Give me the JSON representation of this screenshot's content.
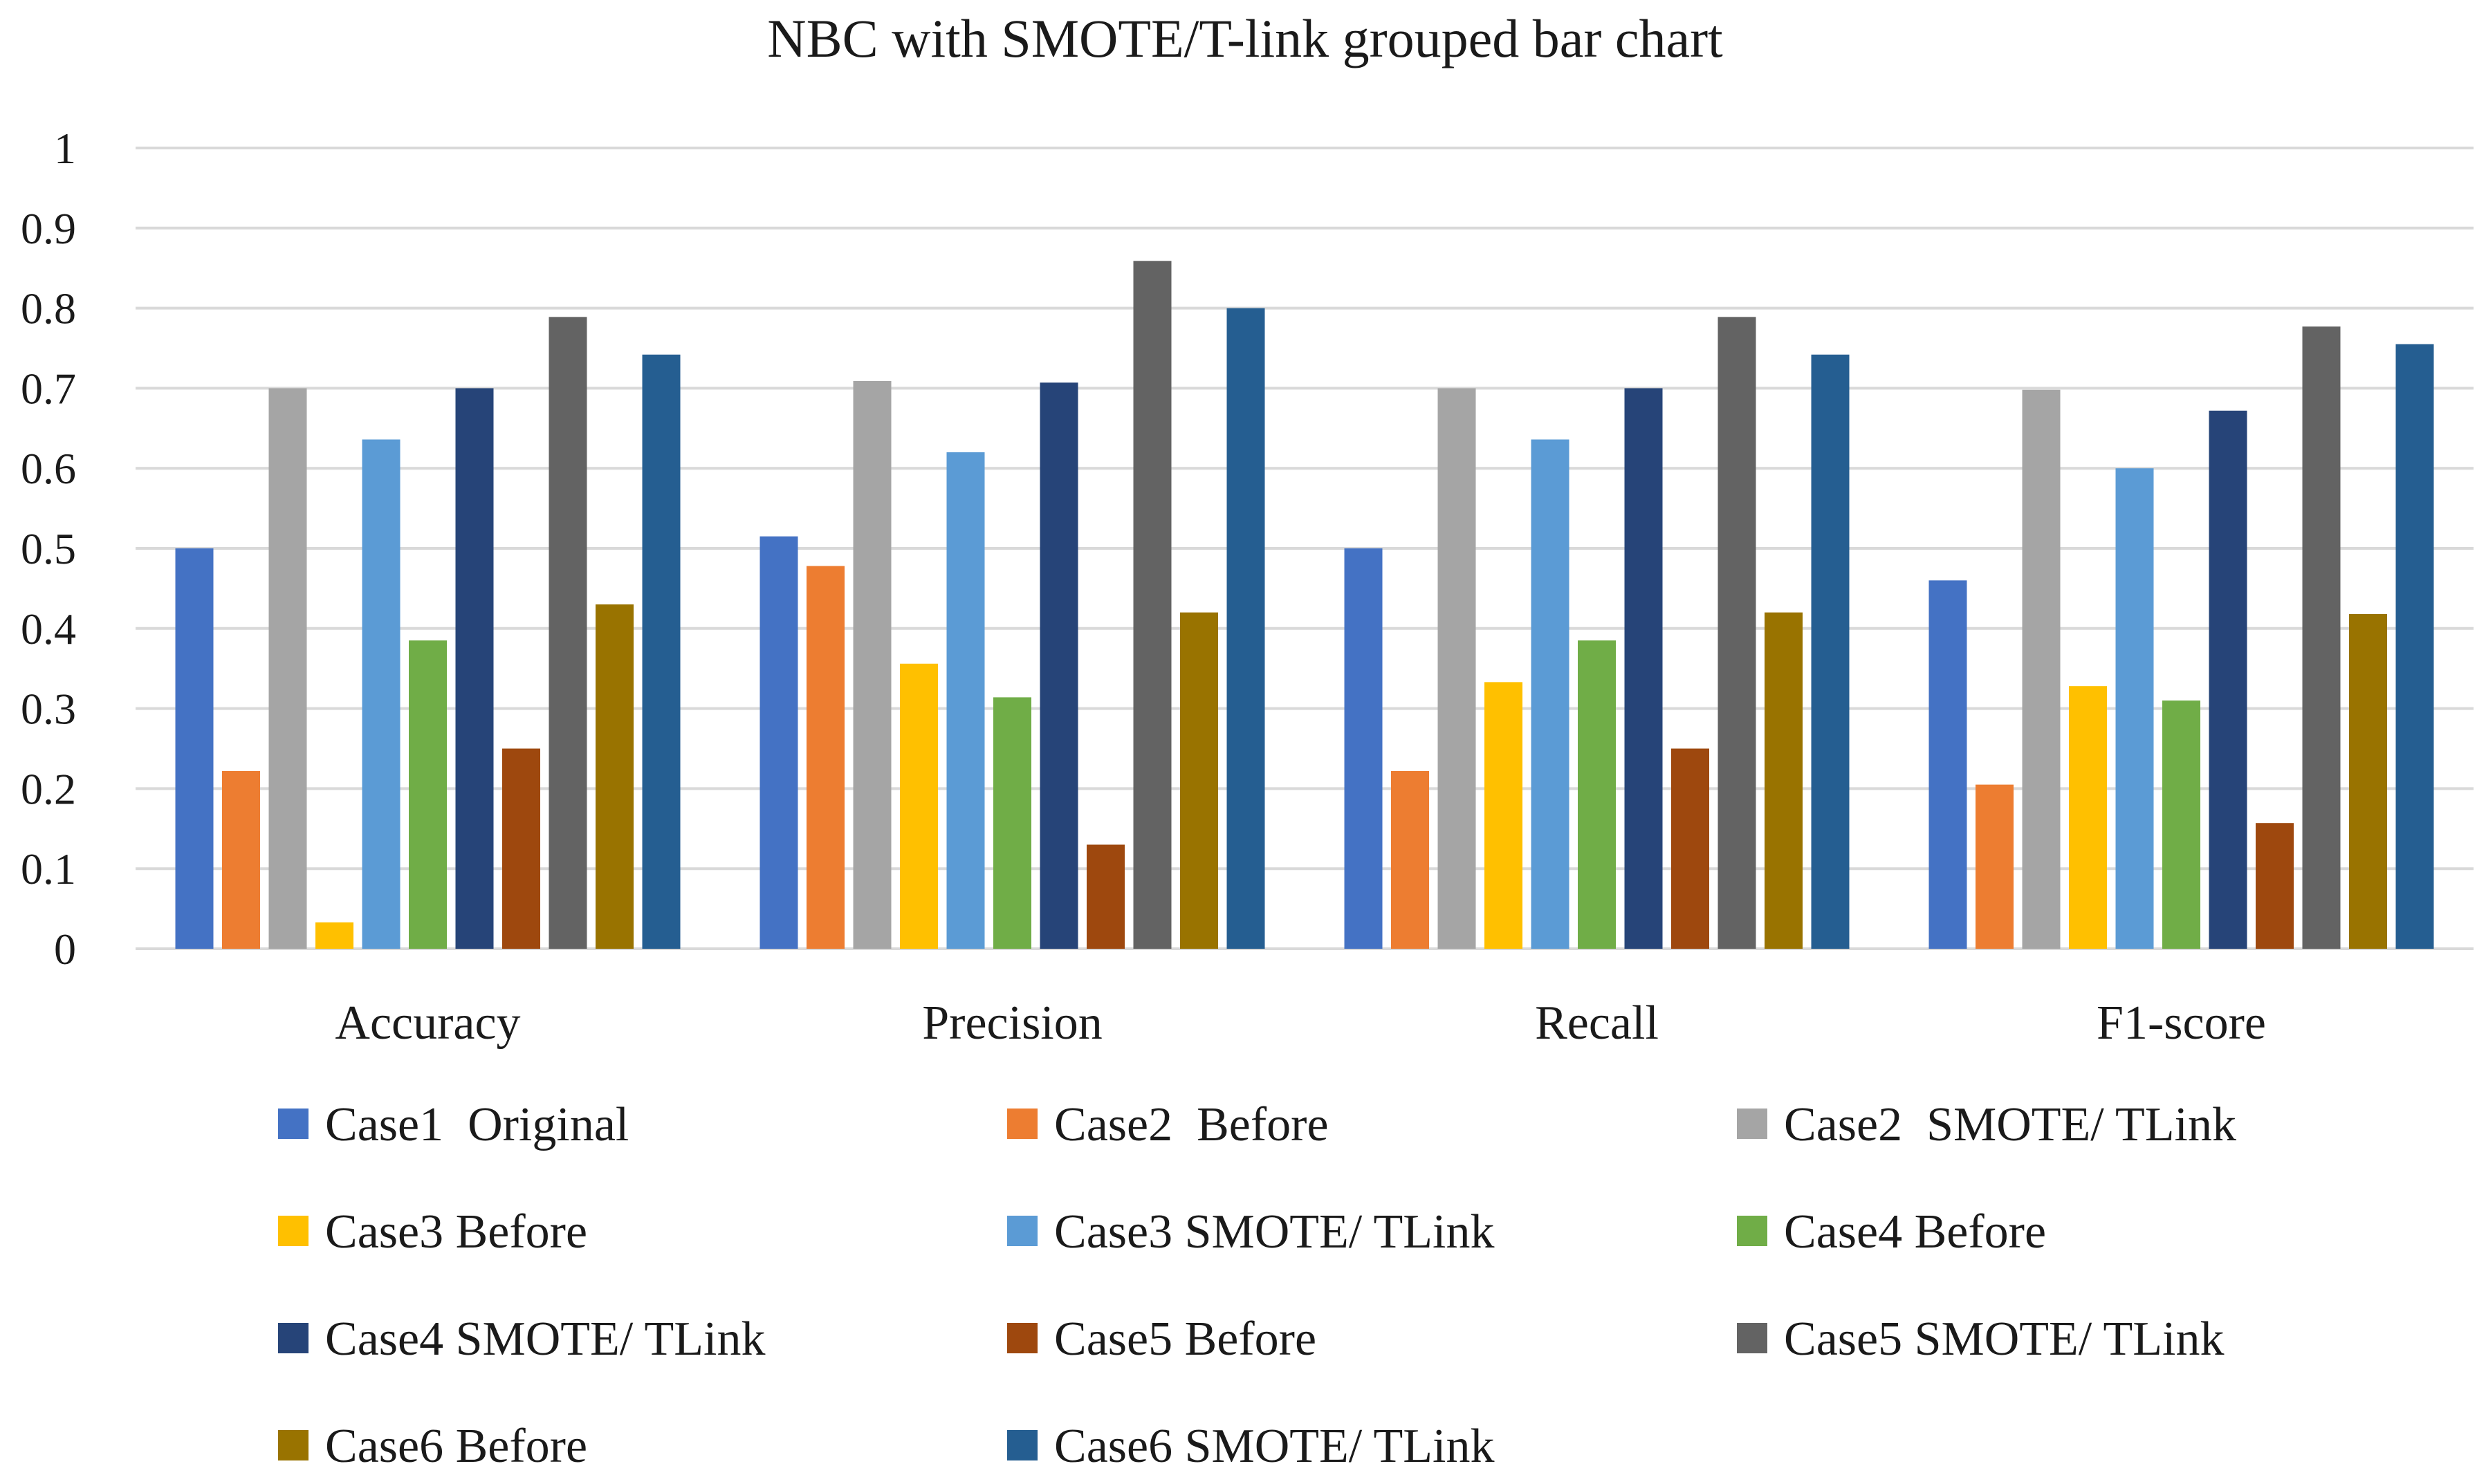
{
  "chart_data": {
    "type": "bar",
    "title": "NBC with SMOTE/T-link grouped bar chart",
    "xlabel": "",
    "ylabel": "",
    "ylim": [
      0,
      1
    ],
    "yticks": [
      "0",
      "0.1",
      "0.2",
      "0.3",
      "0.4",
      "0.5",
      "0.6",
      "0.7",
      "0.8",
      "0.9",
      "1"
    ],
    "categories": [
      "Accuracy",
      "Precision",
      "Recall",
      "F1-score"
    ],
    "legend_position": "bottom",
    "series": [
      {
        "name": "Case1  Original",
        "color": "#4472C4",
        "values": [
          0.5,
          0.515,
          0.5,
          0.46
        ]
      },
      {
        "name": "Case2  Before",
        "color": "#ED7D31",
        "values": [
          0.222,
          0.478,
          0.222,
          0.205
        ]
      },
      {
        "name": "Case2  SMOTE/ TLink",
        "color": "#A5A5A5",
        "values": [
          0.7,
          0.709,
          0.7,
          0.698
        ]
      },
      {
        "name": "Case3 Before",
        "color": "#FFC000",
        "values": [
          0.033,
          0.356,
          0.333,
          0.328
        ]
      },
      {
        "name": "Case3 SMOTE/ TLink",
        "color": "#5B9BD5",
        "values": [
          0.636,
          0.62,
          0.636,
          0.6
        ]
      },
      {
        "name": "Case4 Before",
        "color": "#70AD47",
        "values": [
          0.385,
          0.314,
          0.385,
          0.31
        ]
      },
      {
        "name": "Case4 SMOTE/ TLink",
        "color": "#264478",
        "values": [
          0.7,
          0.707,
          0.7,
          0.672
        ]
      },
      {
        "name": "Case5 Before",
        "color": "#9E480E",
        "values": [
          0.25,
          0.13,
          0.25,
          0.157
        ]
      },
      {
        "name": "Case5 SMOTE/ TLink",
        "color": "#636363",
        "values": [
          0.789,
          0.859,
          0.789,
          0.777
        ]
      },
      {
        "name": "Case6 Before",
        "color": "#997300",
        "values": [
          0.43,
          0.42,
          0.42,
          0.418
        ]
      },
      {
        "name": "Case6 SMOTE/ TLink",
        "color": "#255E91",
        "values": [
          0.742,
          0.8,
          0.742,
          0.755
        ]
      }
    ]
  }
}
